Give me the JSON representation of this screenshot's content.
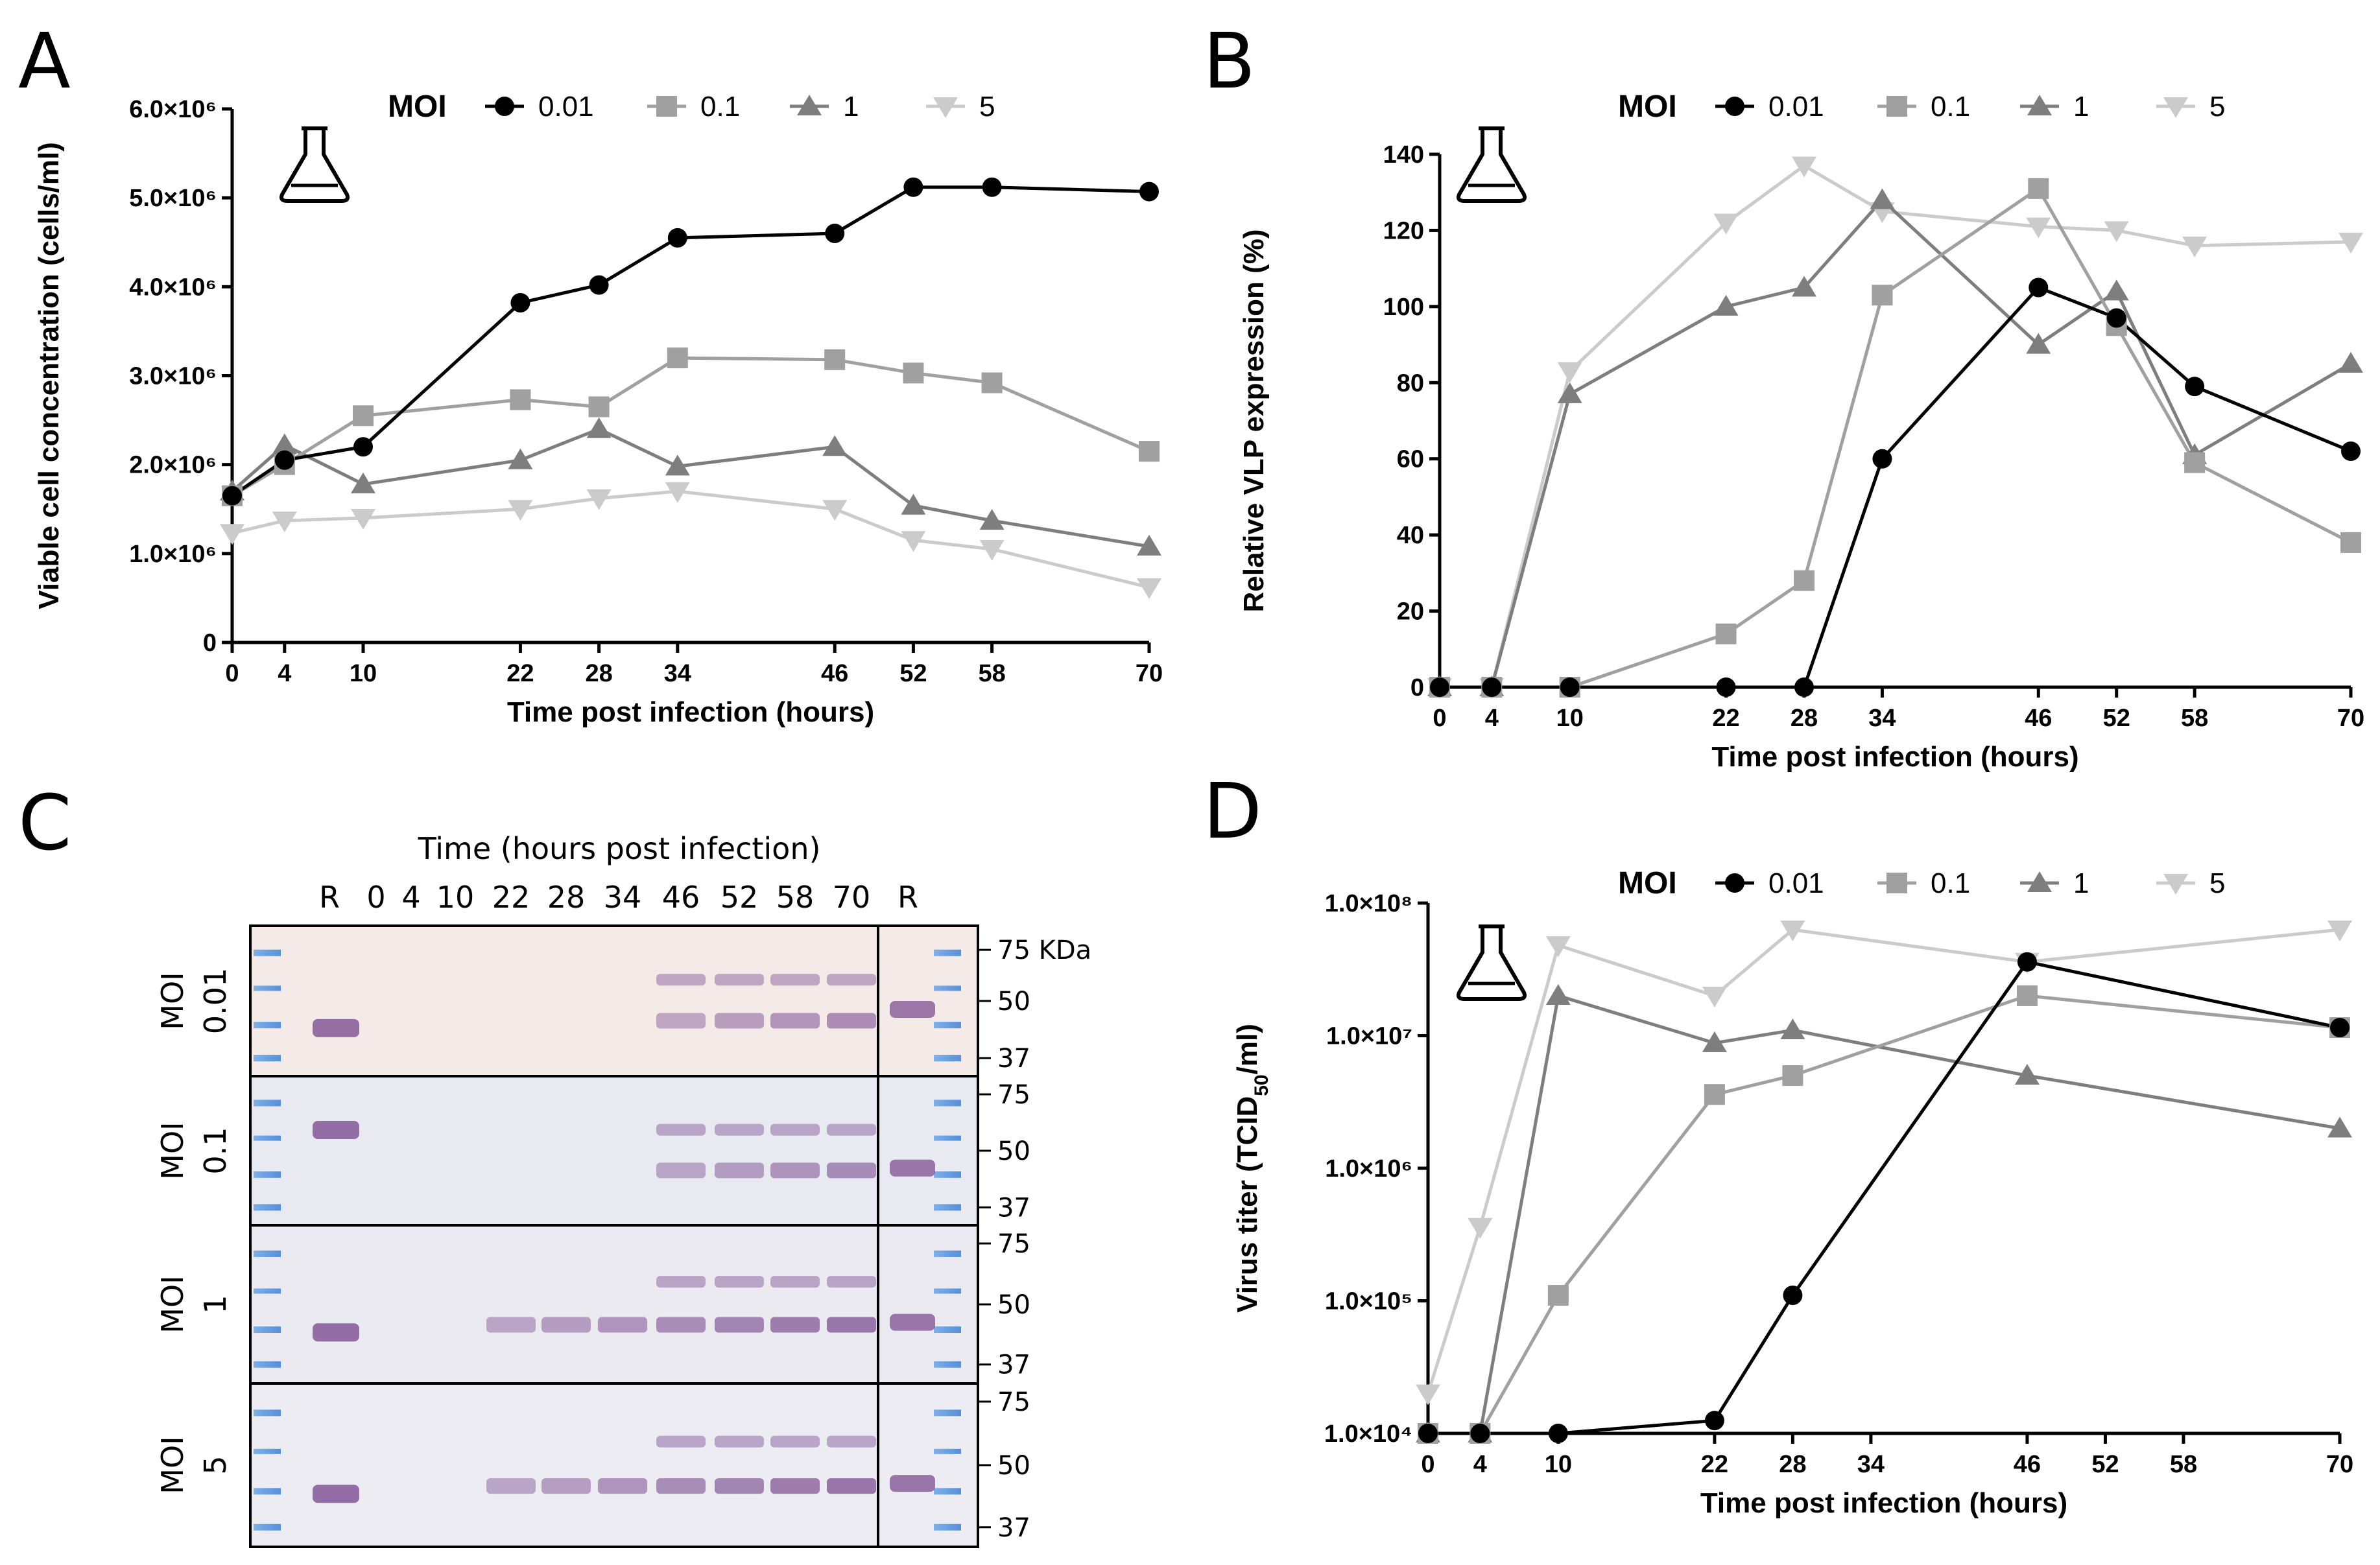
{
  "colors": {
    "moi_001": "#000000",
    "moi_01": "#a0a0a0",
    "moi_1": "#7e7e7e",
    "moi_5": "#cbcbcb"
  },
  "panels": {
    "a": "A",
    "b": "B",
    "c": "C",
    "d": "D"
  },
  "legend": {
    "title": "MOI",
    "labels": [
      "0.01",
      "0.1",
      "1",
      "5"
    ]
  },
  "chart_data": [
    {
      "id": "A",
      "type": "line",
      "xlabel": "Time post infection (hours)",
      "ylabel": "Viable cell concentration (cells/ml)",
      "x": [
        0,
        4,
        10,
        22,
        28,
        34,
        46,
        52,
        58,
        70
      ],
      "xlim": [
        0,
        70
      ],
      "ylim": [
        0,
        6000000
      ],
      "yticks": [
        0,
        1000000,
        2000000,
        3000000,
        4000000,
        5000000,
        6000000
      ],
      "ytick_labels": [
        "0",
        "1.0×10⁶",
        "2.0×10⁶",
        "3.0×10⁶",
        "4.0×10⁶",
        "5.0×10⁶",
        "6.0×10⁶"
      ],
      "series": [
        {
          "name": "0.01",
          "values": [
            1650000,
            2050000,
            2200000,
            3820000,
            4020000,
            4550000,
            4600000,
            5120000,
            5120000,
            5070000
          ]
        },
        {
          "name": "0.1",
          "values": [
            1650000,
            2000000,
            2550000,
            2730000,
            2650000,
            3200000,
            3180000,
            3030000,
            2920000,
            2150000
          ]
        },
        {
          "name": "1",
          "values": [
            1700000,
            2220000,
            1780000,
            2050000,
            2400000,
            1980000,
            2200000,
            1540000,
            1370000,
            1080000
          ]
        },
        {
          "name": "5",
          "values": [
            1230000,
            1370000,
            1400000,
            1500000,
            1620000,
            1700000,
            1500000,
            1150000,
            1050000,
            620000
          ]
        }
      ]
    },
    {
      "id": "B",
      "type": "line",
      "xlabel": "Time post infection (hours)",
      "ylabel": "Relative VLP expression (%)",
      "x": [
        0,
        4,
        10,
        22,
        28,
        34,
        46,
        52,
        58,
        70
      ],
      "xlim": [
        0,
        70
      ],
      "ylim": [
        0,
        140
      ],
      "yticks": [
        0,
        20,
        40,
        60,
        80,
        100,
        120,
        140
      ],
      "ytick_labels": [
        "0",
        "20",
        "40",
        "60",
        "80",
        "100",
        "120",
        "140"
      ],
      "series": [
        {
          "name": "0.01",
          "values": [
            0,
            0,
            0,
            0,
            0,
            60,
            105,
            97,
            79,
            62
          ]
        },
        {
          "name": "0.1",
          "values": [
            0,
            0,
            0,
            14,
            28,
            103,
            131,
            95,
            59,
            38
          ]
        },
        {
          "name": "1",
          "values": [
            0,
            0,
            77,
            100,
            105,
            128,
            90,
            104,
            61,
            85
          ]
        },
        {
          "name": "5",
          "values": [
            0,
            0,
            83,
            122,
            137,
            125,
            121,
            120,
            116,
            117
          ]
        }
      ]
    },
    {
      "id": "D",
      "type": "line",
      "xlabel": "Time post infection (hours)",
      "ylabel_main": "Virus titer (TCID",
      "ylabel_sub": "50",
      "ylabel_end": "/ml)",
      "yscale": "log",
      "x": [
        0,
        4,
        10,
        22,
        28,
        34,
        46,
        52,
        58,
        70
      ],
      "xlim": [
        0,
        70
      ],
      "ylim": [
        10000,
        100000000
      ],
      "yticks": [
        10000,
        100000,
        1000000,
        10000000,
        100000000
      ],
      "ytick_labels": [
        "1.0×10⁴",
        "1.0×10⁵",
        "1.0×10⁶",
        "1.0×10⁷",
        "1.0×10⁸"
      ],
      "series": [
        {
          "name": "0.01",
          "x": [
            0,
            4,
            10,
            22,
            28,
            46,
            70
          ],
          "values": [
            10000,
            10000,
            10000,
            12500,
            110000,
            36000000,
            11500000
          ]
        },
        {
          "name": "0.1",
          "x": [
            0,
            4,
            10,
            22,
            28,
            46,
            70
          ],
          "values": [
            10000,
            10000,
            110000,
            3600000,
            5000000,
            20000000,
            11500000
          ]
        },
        {
          "name": "1",
          "x": [
            0,
            4,
            10,
            22,
            28,
            46,
            70
          ],
          "values": [
            10000,
            10000,
            20000000,
            8800000,
            11000000,
            5000000,
            2000000
          ]
        },
        {
          "name": "5",
          "x": [
            0,
            4,
            10,
            22,
            28,
            46,
            70
          ],
          "values": [
            20000,
            360000,
            48000000,
            20000000,
            63000000,
            36000000,
            63000000
          ]
        }
      ]
    }
  ],
  "blot": {
    "title": "Time (hours post infection)",
    "lanes": [
      "R",
      "0",
      "4",
      "10",
      "22",
      "28",
      "34",
      "46",
      "52",
      "58",
      "70",
      "R"
    ],
    "rows": [
      {
        "moi": "MOI",
        "value": "0.01",
        "markers": [
          "75 KDa",
          "50",
          "37"
        ]
      },
      {
        "moi": "MOI",
        "value": "0.1",
        "markers": [
          "75",
          "50",
          "37"
        ]
      },
      {
        "moi": "MOI",
        "value": "1",
        "markers": [
          "75",
          "50",
          "37"
        ]
      },
      {
        "moi": "MOI",
        "value": "5",
        "markers": [
          "75",
          "50",
          "37"
        ]
      }
    ]
  }
}
